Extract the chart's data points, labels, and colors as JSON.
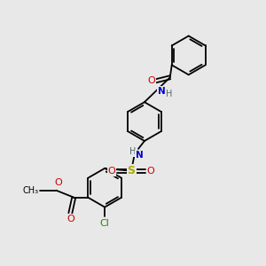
{
  "background_color": "#e8e8e8",
  "bond_color": "#000000",
  "atom_colors": {
    "O": "#cc0000",
    "N": "#0000cc",
    "S": "#aaaa00",
    "Cl": "#228800",
    "C": "#000000",
    "H": "#556666"
  },
  "figsize": [
    3.0,
    3.0
  ],
  "dpi": 100,
  "bond_lw": 1.3,
  "font_size": 7.5,
  "ring_r": 22
}
